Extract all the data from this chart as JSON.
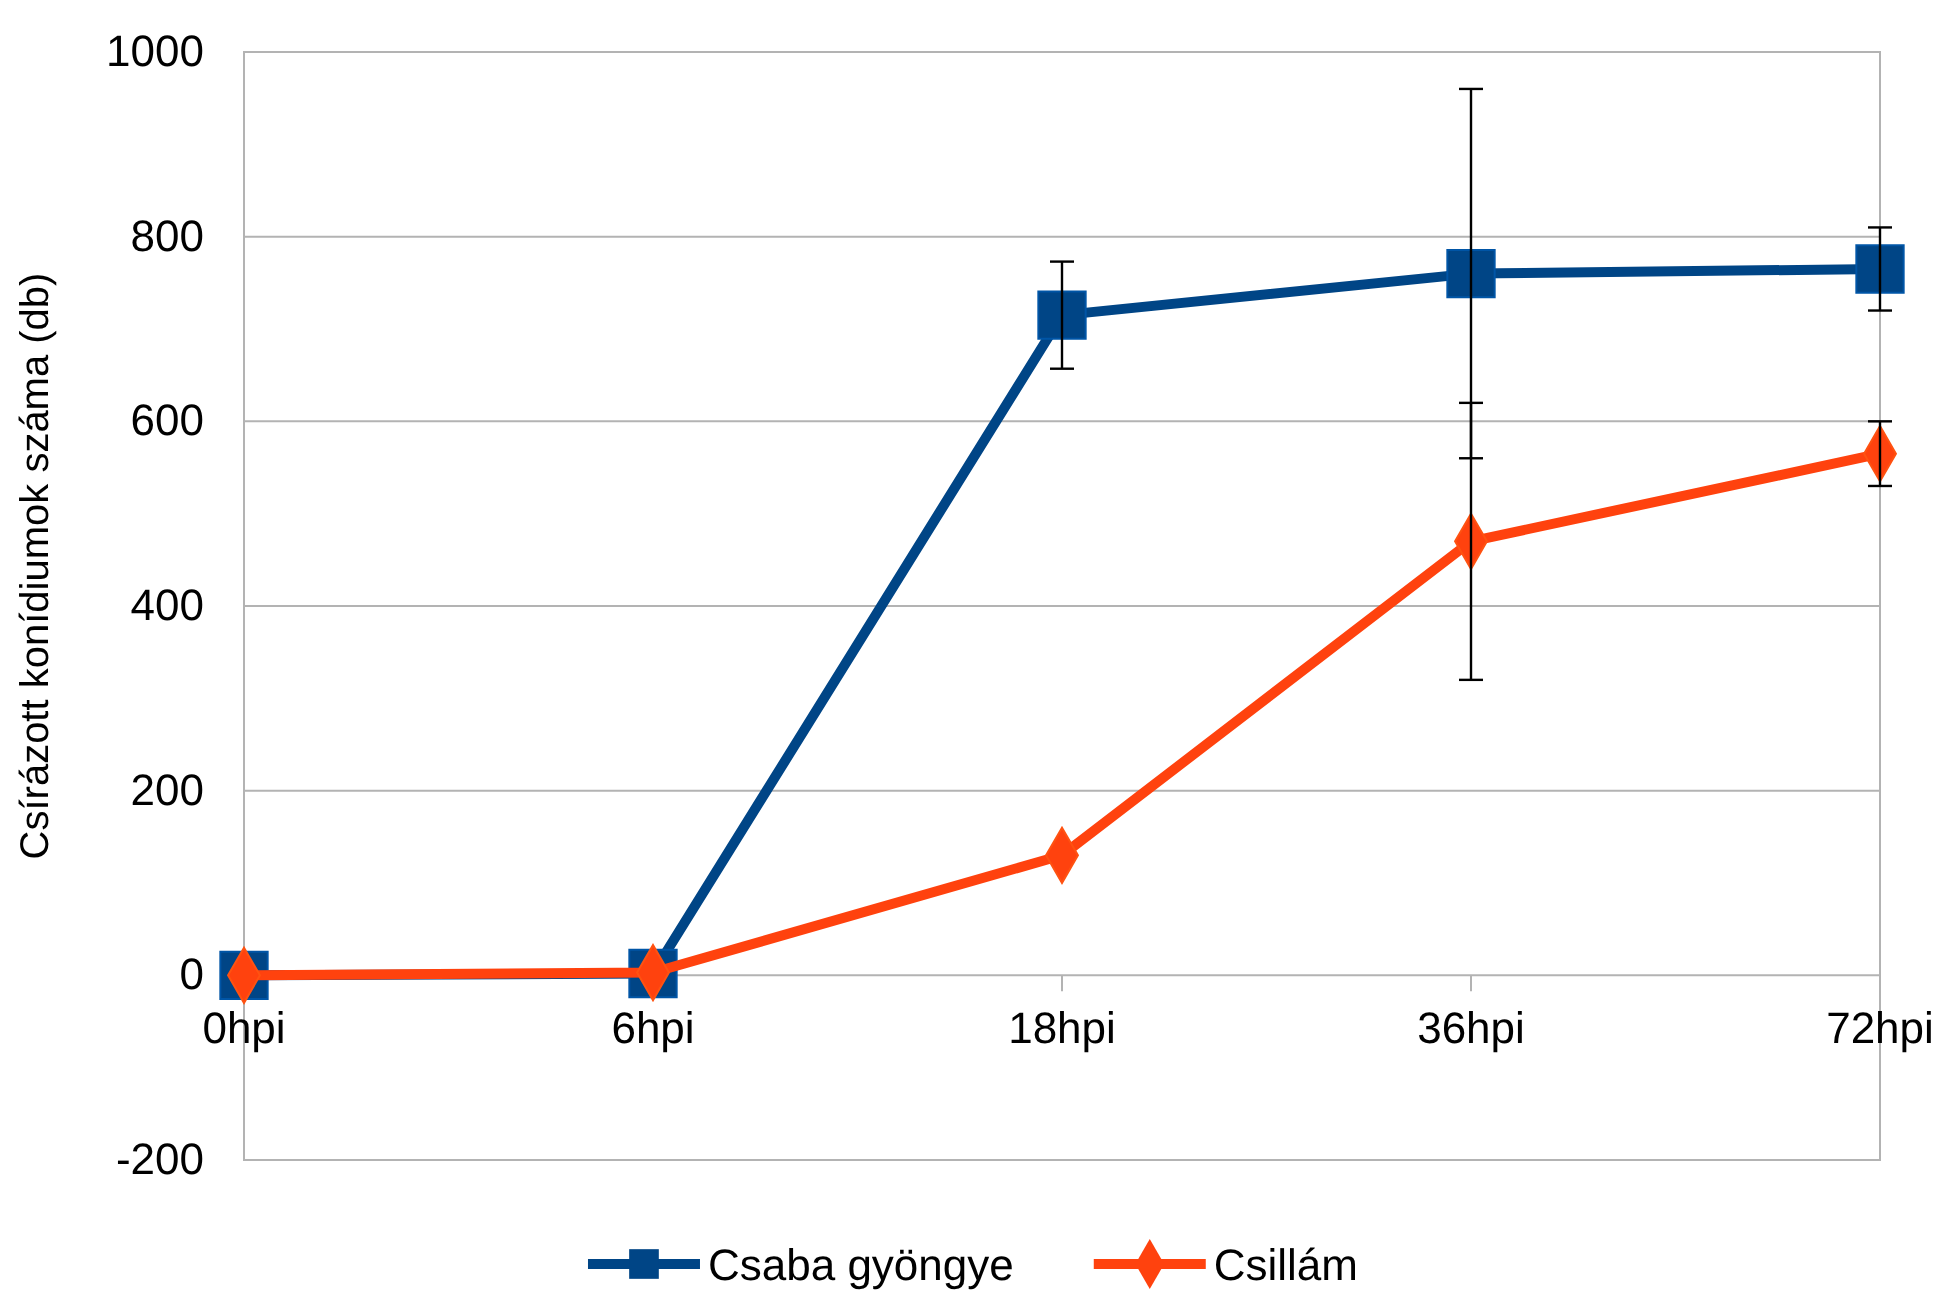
{
  "chart_data": {
    "type": "line",
    "ylabel": "Csírázott konídiumok száma (db)",
    "categories": [
      "0hpi",
      "6hpi",
      "18hpi",
      "36hpi",
      "72hpi"
    ],
    "ylim": [
      -200,
      1000
    ],
    "yticks": [
      -200,
      0,
      200,
      400,
      600,
      800,
      1000
    ],
    "grid": "y",
    "legend": "bottom",
    "line_style": "solid",
    "series": [
      {
        "name": "Csaba gyöngye",
        "color": "#004586",
        "marker": "square",
        "values": [
          0,
          2,
          715,
          760,
          765
        ],
        "errors": [
          null,
          null,
          58,
          200,
          45
        ]
      },
      {
        "name": "Csillám",
        "color": "#ff420e",
        "marker": "diamond",
        "values": [
          0,
          3,
          130,
          470,
          565
        ],
        "errors": [
          null,
          null,
          null,
          150,
          35
        ]
      }
    ]
  }
}
